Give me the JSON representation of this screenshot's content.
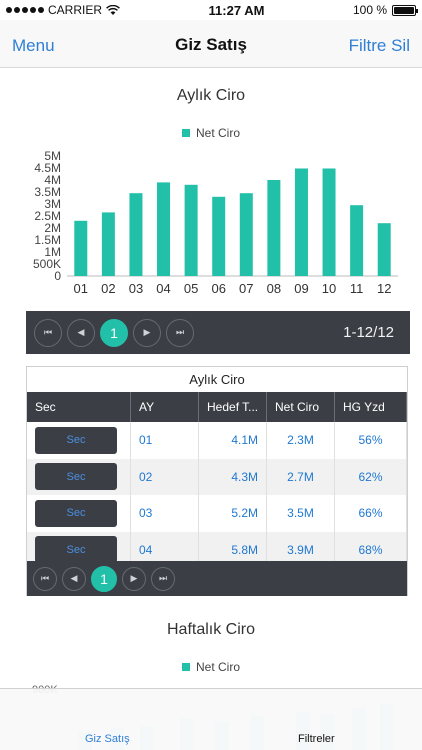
{
  "status": {
    "carrier": "CARRIER",
    "time": "11:27 AM",
    "battery": "100 %"
  },
  "nav": {
    "menu": "Menu",
    "title": "Giz Satış",
    "filter": "Filtre Sil"
  },
  "monthly_chart": {
    "title": "Aylık Ciro",
    "legend": "Net Ciro",
    "y_ticks": [
      "0",
      "500K",
      "1M",
      "1.5M",
      "2M",
      "2.5M",
      "3M",
      "3.5M",
      "4M",
      "4.5M",
      "5M"
    ]
  },
  "pager1": {
    "page": "1",
    "info": "1-12/12"
  },
  "grid": {
    "title": "Aylık Ciro",
    "columns": [
      "Sec",
      "AY",
      "Hedef T...",
      "Net Ciro",
      "HG Yzd"
    ],
    "button_label": "Sec",
    "rows": [
      {
        "ay": "01",
        "hedef": "4.1M",
        "net": "2.3M",
        "hg": "56%"
      },
      {
        "ay": "02",
        "hedef": "4.3M",
        "net": "2.7M",
        "hg": "62%"
      },
      {
        "ay": "03",
        "hedef": "5.2M",
        "net": "3.5M",
        "hg": "66%"
      },
      {
        "ay": "04",
        "hedef": "5.8M",
        "net": "3.9M",
        "hg": "68%"
      }
    ]
  },
  "pager2": {
    "page": "1"
  },
  "weekly_chart": {
    "title": "Haftalık Ciro",
    "legend": "Net Ciro",
    "top_tick": "900K"
  },
  "tabs": {
    "left": "Giz Satış",
    "right": "Filtreler"
  },
  "colors": {
    "accent": "#22c0a8",
    "dark": "#3b3e44",
    "link": "#2f7fd6"
  },
  "chart_data": {
    "type": "bar",
    "title": "Aylık Ciro",
    "categories": [
      "01",
      "02",
      "03",
      "04",
      "05",
      "06",
      "07",
      "08",
      "09",
      "10",
      "11",
      "12"
    ],
    "series": [
      {
        "name": "Net Ciro",
        "values": [
          2300000,
          2650000,
          3450000,
          3900000,
          3800000,
          3300000,
          3450000,
          4000000,
          4480000,
          4480000,
          2950000,
          2200000
        ]
      }
    ],
    "ylim": [
      0,
      5000000
    ],
    "grid": false,
    "legend": "top"
  }
}
